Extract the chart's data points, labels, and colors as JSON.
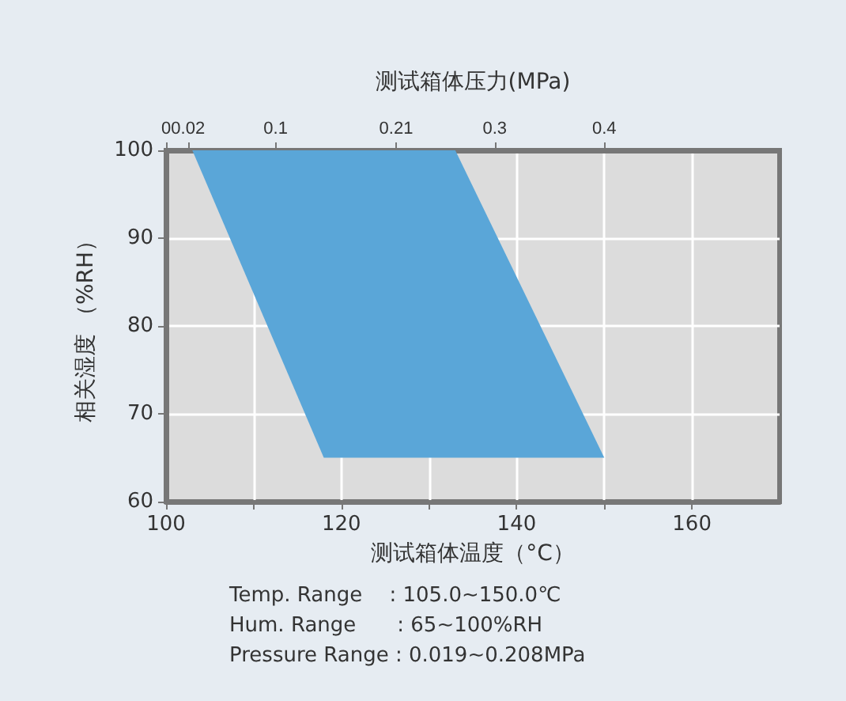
{
  "chart_data": {
    "type": "area",
    "xlabel": "测试箱体温度（°C）",
    "x2label": "测试箱体压力(MPa)",
    "ylabel": "相关湿度 （%RH）",
    "series": [
      {
        "color": "#5aa6d8",
        "x": [
          103,
          133,
          150,
          118
        ],
        "values": [
          100,
          100,
          65,
          65
        ]
      }
    ],
    "xlim": [
      100,
      170
    ],
    "xticks": [
      100,
      {
        "value": 110,
        "label": null
      },
      120,
      {
        "value": 130,
        "label": null
      },
      140,
      {
        "value": 150,
        "label": null
      },
      160
    ],
    "x2lim": [
      0,
      0.56
    ],
    "x2ticks": [
      0,
      0.02,
      0.1,
      0.21,
      0.3,
      0.4
    ],
    "ylim": [
      60,
      100
    ],
    "yticks": [
      60,
      70,
      80,
      90,
      100
    ],
    "grid": true,
    "annotations": [
      "Temp. Range　 : 105.0~150.0℃",
      "Hum. Range　　: 65~100%RH",
      "Pressure Range : 0.019~0.208MPa"
    ]
  }
}
